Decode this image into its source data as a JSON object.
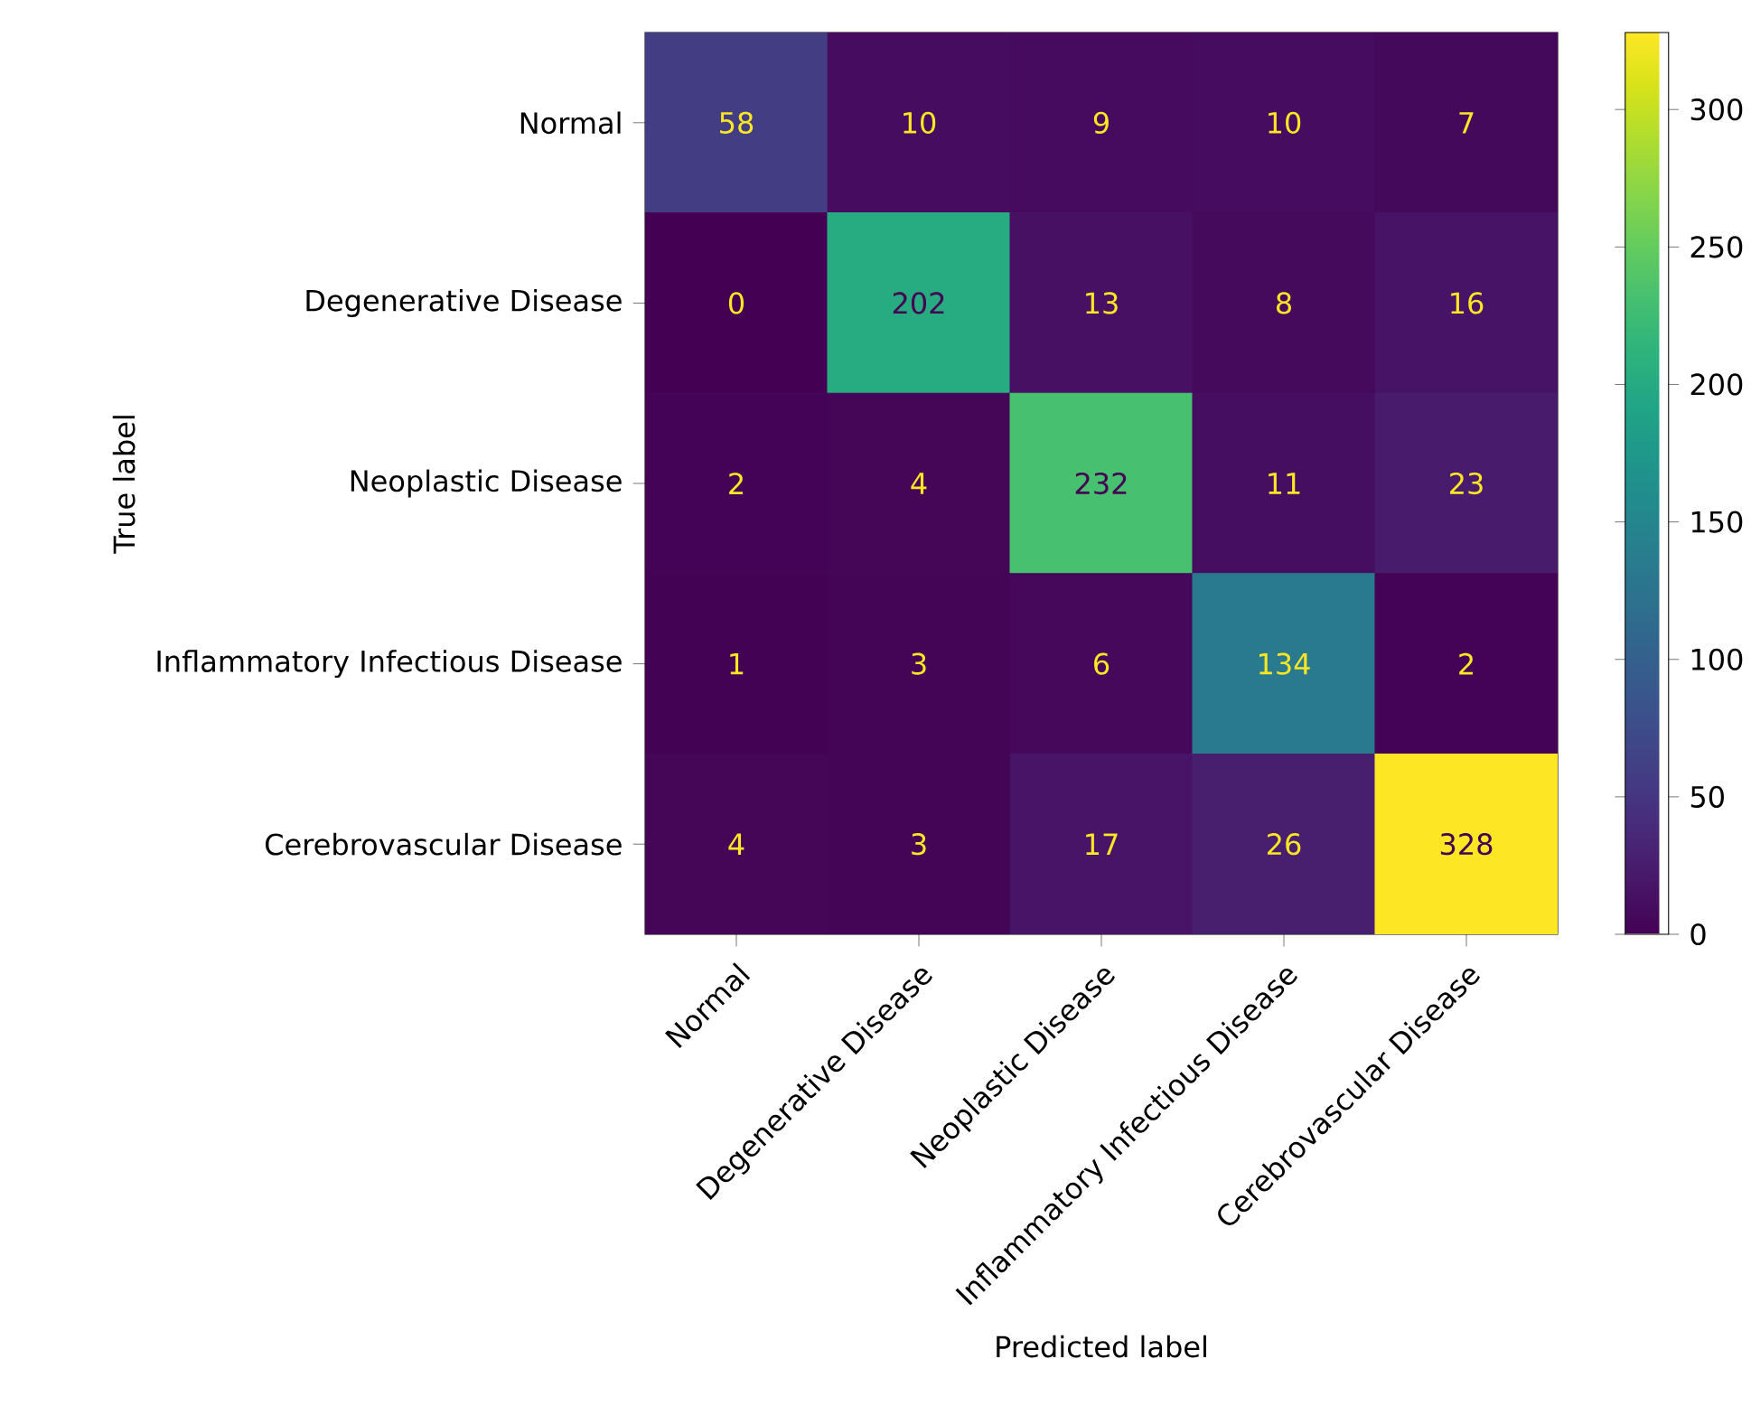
{
  "chart_data": {
    "type": "heatmap",
    "xlabel": "Predicted label",
    "ylabel": "True label",
    "categories": [
      "Normal",
      "Degenerative Disease",
      "Neoplastic Disease",
      "Inflammatory Infectious Disease",
      "Cerebrovascular Disease"
    ],
    "y_categories": [
      "Normal",
      "Degenerative Disease",
      "Neoplastic Disease",
      "Inflammatory Infectious Disease",
      "Cerebrovascular Disease"
    ],
    "cells": [
      [
        58,
        10,
        9,
        10,
        7
      ],
      [
        0,
        202,
        13,
        8,
        16
      ],
      [
        2,
        4,
        232,
        11,
        23
      ],
      [
        1,
        3,
        6,
        134,
        2
      ],
      [
        4,
        3,
        17,
        26,
        328
      ]
    ],
    "clim": [
      0,
      328
    ],
    "cticks": [
      0,
      50,
      100,
      150,
      200,
      250,
      300
    ],
    "data_labels": true
  }
}
